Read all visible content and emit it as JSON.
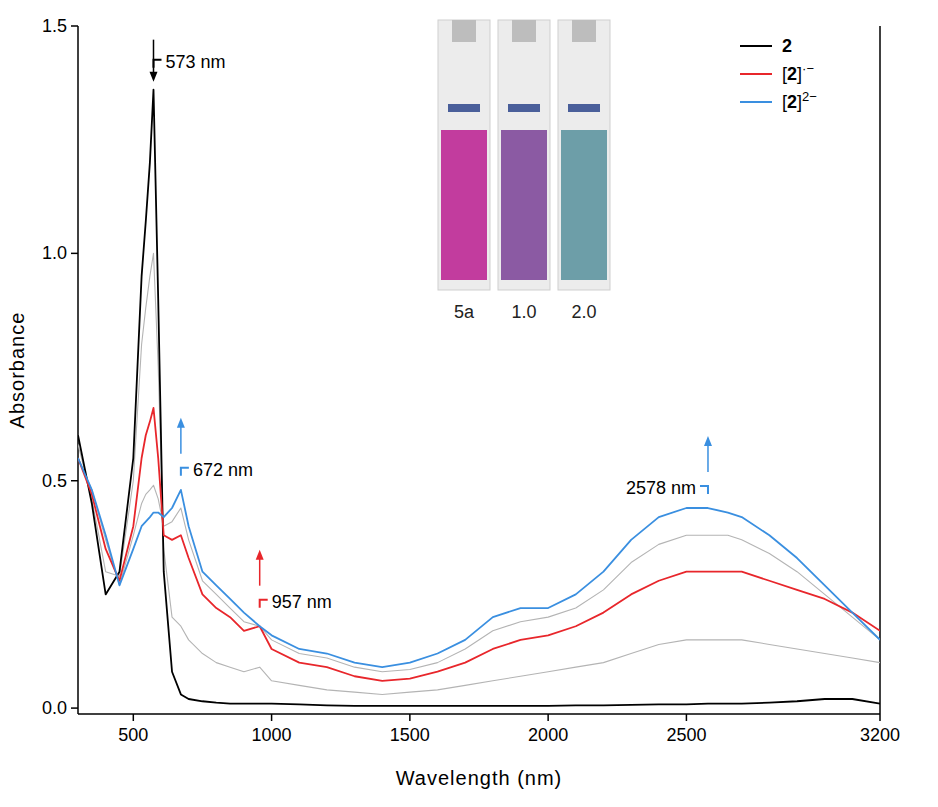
{
  "chart_data": {
    "type": "line",
    "x_label": "Wavelength (nm)",
    "y_label": "Absorbance",
    "xlim": [
      300,
      3200
    ],
    "ylim": [
      -0.013,
      1.5
    ],
    "xticks": [
      500,
      1000,
      1500,
      2000,
      2500,
      3200
    ],
    "yticks": [
      {
        "value": 0,
        "label": "0.0"
      },
      0.5,
      {
        "value": 1,
        "label": "1.0"
      },
      1.5
    ],
    "legend": "top-right",
    "x": [
      300,
      350,
      400,
      450,
      500,
      530,
      545,
      560,
      573,
      590,
      610,
      640,
      672,
      700,
      750,
      800,
      850,
      900,
      957,
      1000,
      1100,
      1200,
      1300,
      1400,
      1500,
      1600,
      1700,
      1800,
      1900,
      2000,
      2100,
      2200,
      2300,
      2400,
      2500,
      2578,
      2650,
      2700,
      2800,
      2900,
      3000,
      3100,
      3200
    ],
    "series": [
      {
        "color": "#b4b4b4",
        "values": [
          0.58,
          0.46,
          0.3,
          0.29,
          0.5,
          0.8,
          0.88,
          0.95,
          1.0,
          0.75,
          0.35,
          0.2,
          0.18,
          0.15,
          0.12,
          0.1,
          0.09,
          0.08,
          0.09,
          0.06,
          0.05,
          0.04,
          0.035,
          0.03,
          0.035,
          0.04,
          0.05,
          0.06,
          0.07,
          0.08,
          0.09,
          0.1,
          0.12,
          0.14,
          0.15,
          0.15,
          0.15,
          0.15,
          0.14,
          0.13,
          0.12,
          0.11,
          0.1
        ]
      },
      {
        "color": "#b4b4b4",
        "values": [
          0.55,
          0.48,
          0.37,
          0.27,
          0.38,
          0.45,
          0.47,
          0.48,
          0.49,
          0.46,
          0.4,
          0.41,
          0.44,
          0.37,
          0.28,
          0.25,
          0.22,
          0.19,
          0.18,
          0.15,
          0.12,
          0.11,
          0.09,
          0.08,
          0.085,
          0.1,
          0.13,
          0.17,
          0.19,
          0.2,
          0.22,
          0.26,
          0.32,
          0.36,
          0.38,
          0.38,
          0.38,
          0.37,
          0.34,
          0.3,
          0.25,
          0.2,
          0.15
        ]
      },
      {
        "name": "2",
        "color": "#000000",
        "values": [
          0.6,
          0.45,
          0.25,
          0.3,
          0.55,
          0.95,
          1.07,
          1.2,
          1.36,
          0.9,
          0.3,
          0.08,
          0.03,
          0.02,
          0.015,
          0.012,
          0.01,
          0.01,
          0.01,
          0.01,
          0.008,
          0.006,
          0.005,
          0.005,
          0.005,
          0.005,
          0.005,
          0.005,
          0.005,
          0.005,
          0.006,
          0.006,
          0.007,
          0.008,
          0.008,
          0.01,
          0.01,
          0.01,
          0.012,
          0.015,
          0.02,
          0.02,
          0.01
        ]
      },
      {
        "name": "[2]·−",
        "color": "#e8262b",
        "values": [
          0.55,
          0.47,
          0.35,
          0.28,
          0.4,
          0.55,
          0.6,
          0.63,
          0.66,
          0.55,
          0.38,
          0.37,
          0.38,
          0.33,
          0.25,
          0.22,
          0.2,
          0.17,
          0.18,
          0.13,
          0.1,
          0.09,
          0.07,
          0.06,
          0.065,
          0.08,
          0.1,
          0.13,
          0.15,
          0.16,
          0.18,
          0.21,
          0.25,
          0.28,
          0.3,
          0.3,
          0.3,
          0.3,
          0.28,
          0.26,
          0.24,
          0.21,
          0.17
        ]
      },
      {
        "name": "[2]2−",
        "color": "#3a8fe0",
        "values": [
          0.55,
          0.48,
          0.38,
          0.27,
          0.35,
          0.4,
          0.41,
          0.42,
          0.43,
          0.43,
          0.42,
          0.44,
          0.48,
          0.4,
          0.3,
          0.27,
          0.24,
          0.21,
          0.18,
          0.16,
          0.13,
          0.12,
          0.1,
          0.09,
          0.1,
          0.12,
          0.15,
          0.2,
          0.22,
          0.22,
          0.25,
          0.3,
          0.37,
          0.42,
          0.44,
          0.44,
          0.43,
          0.42,
          0.38,
          0.33,
          0.27,
          0.21,
          0.15
        ]
      }
    ],
    "annotations": [
      {
        "label": "573 nm",
        "x": 573,
        "y": 1.36,
        "color": "#000000",
        "marker": "down"
      },
      {
        "label": "672 nm",
        "x": 672,
        "y": 0.48,
        "color": "#3a8fe0",
        "marker": "up"
      },
      {
        "label": "957 nm",
        "x": 957,
        "y": 0.19,
        "color": "#e8262b",
        "marker": "up"
      },
      {
        "label": "2578 nm",
        "x": 2578,
        "y": 0.44,
        "color": "#3a8fe0",
        "marker": "up"
      }
    ],
    "inset": {
      "labels": [
        "5a",
        "1.0",
        "2.0"
      ],
      "colors": [
        "#c23c9e",
        "#8b5aa3",
        "#6d9ea8"
      ]
    }
  }
}
